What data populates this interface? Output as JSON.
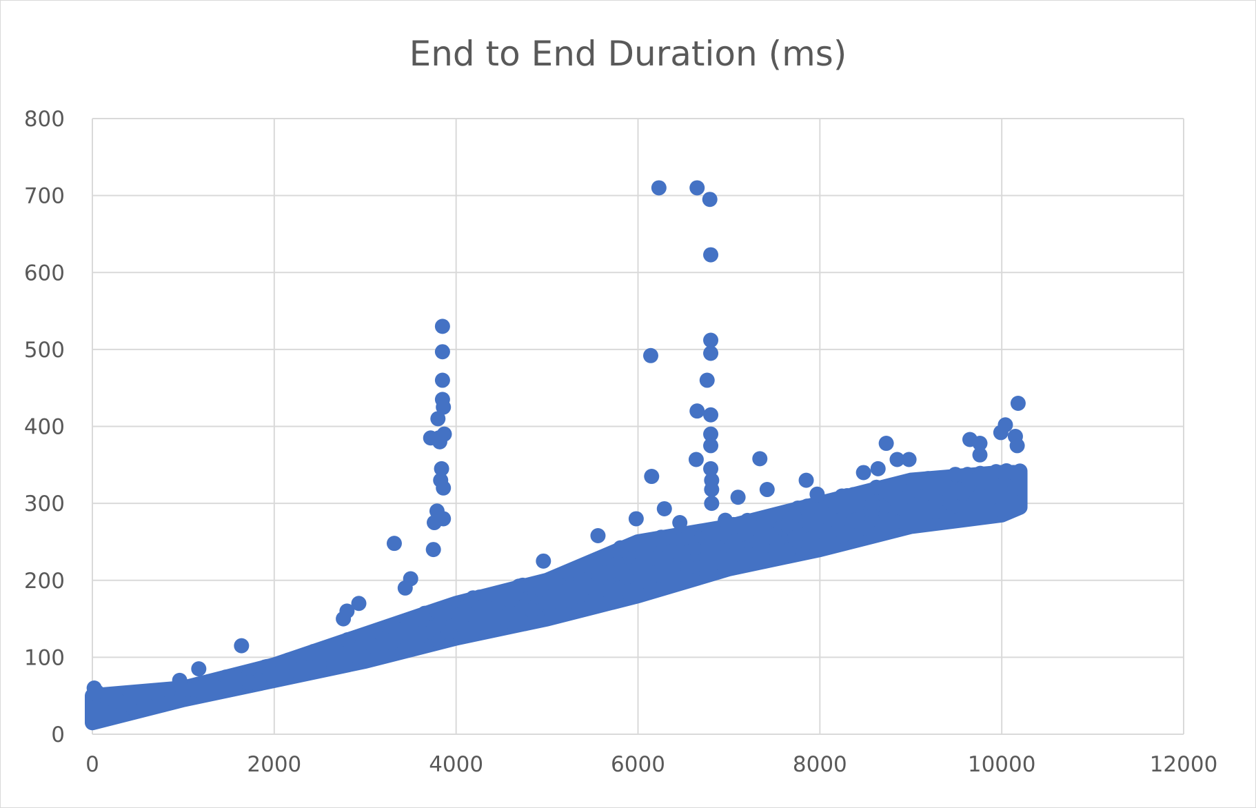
{
  "chart_data": {
    "type": "scatter",
    "title": "End to End Duration (ms)",
    "xlabel": "",
    "ylabel": "",
    "xlim": [
      0,
      12000
    ],
    "ylim": [
      0,
      800
    ],
    "x_ticks": [
      0,
      2000,
      4000,
      6000,
      8000,
      10000,
      12000
    ],
    "y_ticks": [
      0,
      100,
      200,
      300,
      400,
      500,
      600,
      700,
      800
    ],
    "grid": true,
    "legend": "none",
    "marker_color": "#4472c4",
    "trend": {
      "description": "main band of points rising roughly linearly",
      "x": [
        0,
        1000,
        2000,
        3000,
        4000,
        5000,
        6000,
        7000,
        8000,
        9000,
        10000,
        10200
      ],
      "y_low": [
        15,
        45,
        70,
        95,
        125,
        150,
        180,
        215,
        240,
        270,
        285,
        295
      ],
      "y_high": [
        50,
        60,
        90,
        130,
        170,
        200,
        250,
        270,
        300,
        330,
        340,
        340
      ]
    },
    "outliers": [
      {
        "x": 20,
        "y": 60
      },
      {
        "x": 50,
        "y": 55
      },
      {
        "x": 180,
        "y": 50
      },
      {
        "x": 960,
        "y": 70
      },
      {
        "x": 1170,
        "y": 85
      },
      {
        "x": 1640,
        "y": 115
      },
      {
        "x": 2760,
        "y": 150
      },
      {
        "x": 2800,
        "y": 160
      },
      {
        "x": 2930,
        "y": 170
      },
      {
        "x": 3320,
        "y": 248
      },
      {
        "x": 3440,
        "y": 190
      },
      {
        "x": 3500,
        "y": 202
      },
      {
        "x": 3720,
        "y": 385
      },
      {
        "x": 3750,
        "y": 240
      },
      {
        "x": 3760,
        "y": 275
      },
      {
        "x": 3790,
        "y": 290
      },
      {
        "x": 3800,
        "y": 410
      },
      {
        "x": 3810,
        "y": 385
      },
      {
        "x": 3820,
        "y": 380
      },
      {
        "x": 3830,
        "y": 330
      },
      {
        "x": 3840,
        "y": 345
      },
      {
        "x": 3850,
        "y": 530
      },
      {
        "x": 3850,
        "y": 497
      },
      {
        "x": 3850,
        "y": 460
      },
      {
        "x": 3850,
        "y": 435
      },
      {
        "x": 3860,
        "y": 425
      },
      {
        "x": 3860,
        "y": 320
      },
      {
        "x": 3860,
        "y": 280
      },
      {
        "x": 3870,
        "y": 390
      },
      {
        "x": 4960,
        "y": 225
      },
      {
        "x": 5560,
        "y": 258
      },
      {
        "x": 5980,
        "y": 280
      },
      {
        "x": 6140,
        "y": 492
      },
      {
        "x": 6150,
        "y": 335
      },
      {
        "x": 6230,
        "y": 710
      },
      {
        "x": 6290,
        "y": 293
      },
      {
        "x": 6460,
        "y": 275
      },
      {
        "x": 6640,
        "y": 357
      },
      {
        "x": 6650,
        "y": 420
      },
      {
        "x": 6650,
        "y": 710
      },
      {
        "x": 6760,
        "y": 460
      },
      {
        "x": 6790,
        "y": 695
      },
      {
        "x": 6800,
        "y": 623
      },
      {
        "x": 6800,
        "y": 512
      },
      {
        "x": 6800,
        "y": 495
      },
      {
        "x": 6800,
        "y": 415
      },
      {
        "x": 6800,
        "y": 390
      },
      {
        "x": 6800,
        "y": 375
      },
      {
        "x": 6800,
        "y": 345
      },
      {
        "x": 6810,
        "y": 330
      },
      {
        "x": 6810,
        "y": 318
      },
      {
        "x": 6810,
        "y": 300
      },
      {
        "x": 6960,
        "y": 278
      },
      {
        "x": 7100,
        "y": 308
      },
      {
        "x": 7340,
        "y": 358
      },
      {
        "x": 7420,
        "y": 318
      },
      {
        "x": 7850,
        "y": 330
      },
      {
        "x": 7970,
        "y": 312
      },
      {
        "x": 8300,
        "y": 310
      },
      {
        "x": 8480,
        "y": 340
      },
      {
        "x": 8640,
        "y": 345
      },
      {
        "x": 8730,
        "y": 378
      },
      {
        "x": 8850,
        "y": 357
      },
      {
        "x": 8980,
        "y": 357
      },
      {
        "x": 9650,
        "y": 383
      },
      {
        "x": 9760,
        "y": 378
      },
      {
        "x": 9760,
        "y": 363
      },
      {
        "x": 9990,
        "y": 392
      },
      {
        "x": 10040,
        "y": 402
      },
      {
        "x": 10150,
        "y": 387
      },
      {
        "x": 10170,
        "y": 375
      },
      {
        "x": 10180,
        "y": 430
      },
      {
        "x": 10190,
        "y": 335
      }
    ]
  }
}
